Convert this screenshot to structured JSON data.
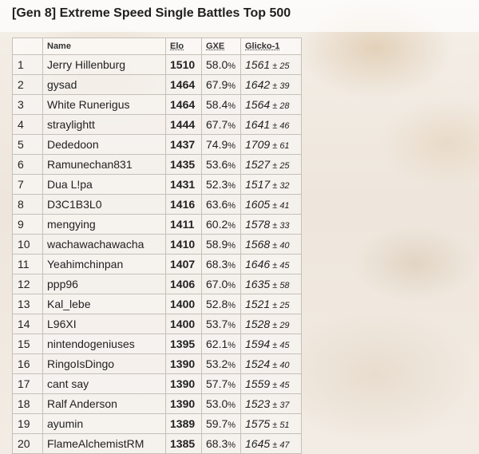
{
  "title": "[Gen 8] Extreme Speed Single Battles Top 500",
  "columns": {
    "rank": "",
    "name": "Name",
    "elo": "Elo",
    "gxe": "GXE",
    "glicko": "Glicko-1"
  },
  "rows": [
    {
      "rank": "1",
      "name": "Jerry Hillenburg",
      "elo": "1510",
      "gxe": "58.0",
      "glicko": "1561",
      "dev": "25"
    },
    {
      "rank": "2",
      "name": "gysad",
      "elo": "1464",
      "gxe": "67.9",
      "glicko": "1642",
      "dev": "39"
    },
    {
      "rank": "3",
      "name": "White Runerigus",
      "elo": "1464",
      "gxe": "58.4",
      "glicko": "1564",
      "dev": "28"
    },
    {
      "rank": "4",
      "name": "straylightt",
      "elo": "1444",
      "gxe": "67.7",
      "glicko": "1641",
      "dev": "46"
    },
    {
      "rank": "5",
      "name": "Dededoon",
      "elo": "1437",
      "gxe": "74.9",
      "glicko": "1709",
      "dev": "61"
    },
    {
      "rank": "6",
      "name": "Ramunechan831",
      "elo": "1435",
      "gxe": "53.6",
      "glicko": "1527",
      "dev": "25"
    },
    {
      "rank": "7",
      "name": "Dua L!pa",
      "elo": "1431",
      "gxe": "52.3",
      "glicko": "1517",
      "dev": "32"
    },
    {
      "rank": "8",
      "name": "D3C1B3L0",
      "elo": "1416",
      "gxe": "63.6",
      "glicko": "1605",
      "dev": "41"
    },
    {
      "rank": "9",
      "name": "mengying",
      "elo": "1411",
      "gxe": "60.2",
      "glicko": "1578",
      "dev": "33"
    },
    {
      "rank": "10",
      "name": "wachawachawacha",
      "elo": "1410",
      "gxe": "58.9",
      "glicko": "1568",
      "dev": "40"
    },
    {
      "rank": "11",
      "name": "Yeahimchinpan",
      "elo": "1407",
      "gxe": "68.3",
      "glicko": "1646",
      "dev": "45"
    },
    {
      "rank": "12",
      "name": "ppp96",
      "elo": "1406",
      "gxe": "67.0",
      "glicko": "1635",
      "dev": "58"
    },
    {
      "rank": "13",
      "name": "Kal_lebe",
      "elo": "1400",
      "gxe": "52.8",
      "glicko": "1521",
      "dev": "25"
    },
    {
      "rank": "14",
      "name": "L96XI",
      "elo": "1400",
      "gxe": "53.7",
      "glicko": "1528",
      "dev": "29"
    },
    {
      "rank": "15",
      "name": "nintendogeniuses",
      "elo": "1395",
      "gxe": "62.1",
      "glicko": "1594",
      "dev": "45"
    },
    {
      "rank": "16",
      "name": "RingoIsDingo",
      "elo": "1390",
      "gxe": "53.2",
      "glicko": "1524",
      "dev": "40"
    },
    {
      "rank": "17",
      "name": "cant say",
      "elo": "1390",
      "gxe": "57.7",
      "glicko": "1559",
      "dev": "45"
    },
    {
      "rank": "18",
      "name": "Ralf Anderson",
      "elo": "1390",
      "gxe": "53.0",
      "glicko": "1523",
      "dev": "37"
    },
    {
      "rank": "19",
      "name": "ayumin",
      "elo": "1389",
      "gxe": "59.7",
      "glicko": "1575",
      "dev": "51"
    },
    {
      "rank": "20",
      "name": "FlameAlchemistRM",
      "elo": "1385",
      "gxe": "68.3",
      "glicko": "1645",
      "dev": "47"
    }
  ]
}
